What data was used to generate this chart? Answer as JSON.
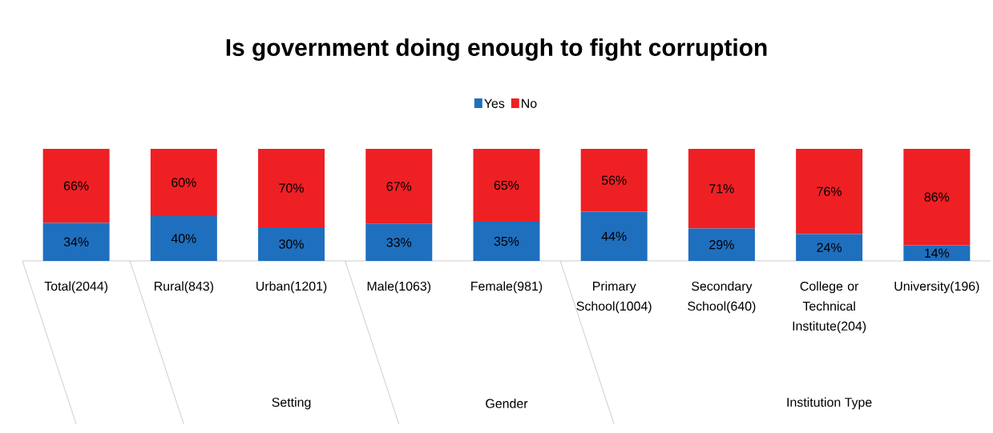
{
  "chart_data": {
    "type": "bar",
    "stacked": true,
    "title": "Is government doing enough to fight corruption",
    "categories": [
      "Total(2044)",
      "Rural(843)",
      "Urban(1201)",
      "Male(1063)",
      "Female(981)",
      "Primary School(1004)",
      "Secondary School(640)",
      "College or Technical Institute(204)",
      "University(196)"
    ],
    "series": [
      {
        "name": "Yes",
        "color": "#1f6fbf",
        "values": [
          34,
          40,
          30,
          33,
          35,
          44,
          29,
          24,
          14
        ],
        "value_labels": [
          "34%",
          "40%",
          "30%",
          "33%",
          "35%",
          "44%",
          "29%",
          "24%",
          "14%"
        ]
      },
      {
        "name": "No",
        "color": "#ee2024",
        "values": [
          66,
          60,
          70,
          67,
          65,
          56,
          71,
          76,
          86
        ],
        "value_labels": [
          "66%",
          "60%",
          "70%",
          "67%",
          "65%",
          "56%",
          "71%",
          "76%",
          "86%"
        ]
      }
    ],
    "legend": "top",
    "tick_labels": "x",
    "annotations": [
      "Setting",
      "Gender",
      "Institution Type"
    ]
  }
}
